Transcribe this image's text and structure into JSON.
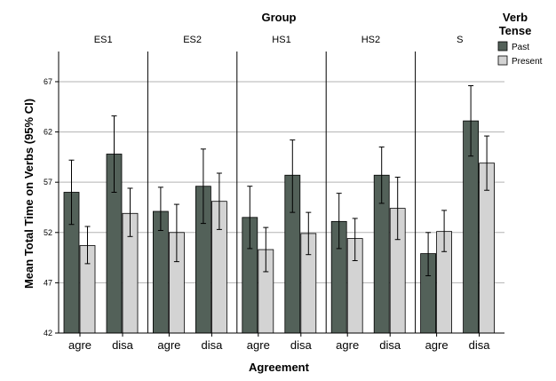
{
  "chart_data": {
    "type": "bar",
    "title": "Group",
    "xlabel": "Agreement",
    "ylabel": "Mean Total Time on Verbs (95% CI)",
    "ylim": [
      42,
      70
    ],
    "yticks": [
      42,
      47,
      52,
      57,
      62,
      67
    ],
    "grid": true,
    "legend": {
      "title_lines": [
        "Verb",
        "Tense"
      ],
      "position": "top-right"
    },
    "panels": [
      "ES1",
      "ES2",
      "HS1",
      "HS2",
      "S"
    ],
    "categories": [
      "agre",
      "disa"
    ],
    "series": [
      {
        "name": "Past",
        "color": "#536159",
        "values": {
          "ES1": [
            56.0,
            59.8
          ],
          "ES2": [
            54.1,
            56.6
          ],
          "HS1": [
            53.5,
            57.7
          ],
          "HS2": [
            53.1,
            57.7
          ],
          "S": [
            49.9,
            63.1
          ]
        },
        "ci_low": {
          "ES1": [
            52.8,
            56.0
          ],
          "ES2": [
            52.2,
            52.9
          ],
          "HS1": [
            50.4,
            54.0
          ],
          "HS2": [
            50.4,
            54.9
          ],
          "S": [
            47.7,
            59.6
          ]
        },
        "ci_high": {
          "ES1": [
            59.2,
            63.6
          ],
          "ES2": [
            56.5,
            60.3
          ],
          "HS1": [
            56.6,
            61.2
          ],
          "HS2": [
            55.9,
            60.5
          ],
          "S": [
            52.0,
            66.6
          ]
        }
      },
      {
        "name": "Present",
        "color": "#d3d3d3",
        "values": {
          "ES1": [
            50.7,
            53.9
          ],
          "ES2": [
            52.0,
            55.1
          ],
          "HS1": [
            50.3,
            51.9
          ],
          "HS2": [
            51.4,
            54.4
          ],
          "S": [
            52.1,
            58.9
          ]
        },
        "ci_low": {
          "ES1": [
            48.9,
            51.6
          ],
          "ES2": [
            49.1,
            52.3
          ],
          "HS1": [
            48.1,
            49.8
          ],
          "HS2": [
            49.2,
            51.3
          ],
          "S": [
            50.1,
            56.2
          ]
        },
        "ci_high": {
          "ES1": [
            52.6,
            56.4
          ],
          "ES2": [
            54.8,
            57.9
          ],
          "HS1": [
            52.5,
            54.0
          ],
          "HS2": [
            53.4,
            57.5
          ],
          "S": [
            54.2,
            61.6
          ]
        }
      }
    ]
  }
}
